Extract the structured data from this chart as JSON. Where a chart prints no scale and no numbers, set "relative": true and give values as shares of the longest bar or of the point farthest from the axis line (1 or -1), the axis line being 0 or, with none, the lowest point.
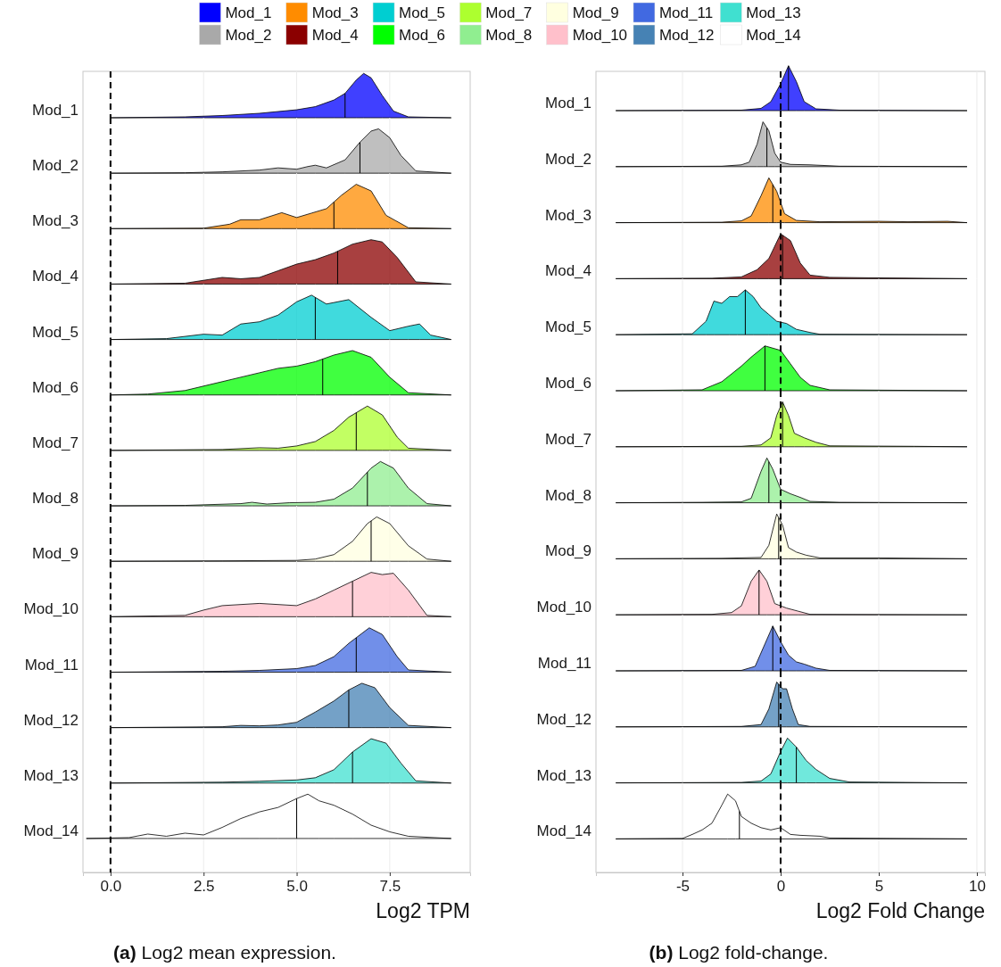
{
  "chart_data": [
    {
      "type": "area",
      "relative": true,
      "xlim": [
        -0.74,
        9.66
      ],
      "xticks": [
        0,
        2.5,
        5,
        7.5
      ],
      "tick_labels": false,
      "grid": "x",
      "legend": "top",
      "x": [
        0,
        2,
        3,
        4,
        5,
        5.5,
        6,
        6.3,
        6.6,
        6.8,
        7.0,
        7.3,
        7.6,
        8,
        9.15
      ],
      "series": [
        {
          "name": "Mod_1",
          "color": "#0000ff",
          "values": [
            0,
            0.02,
            0.05,
            0.1,
            0.18,
            0.25,
            0.4,
            0.55,
            0.85,
            1,
            0.9,
            0.5,
            0.15,
            0.02,
            0
          ]
        }
      ],
      "ref_lines": [
        {
          "axis": "x",
          "value": 0,
          "line_style": "dashed"
        },
        {
          "axis": "x",
          "value": 6.3
        }
      ]
    },
    {
      "type": "area",
      "relative": true,
      "xlim": [
        -0.74,
        9.66
      ],
      "xticks": [
        0,
        2.5,
        5,
        7.5
      ],
      "tick_labels": false,
      "grid": "x",
      "x": [
        0,
        2,
        3,
        4,
        4.5,
        5,
        5.3,
        5.5,
        5.8,
        6.3,
        6.7,
        7.0,
        7.2,
        7.5,
        7.8,
        8.2,
        9.15
      ],
      "series": [
        {
          "name": "Mod_2",
          "color": "#a9a9a9",
          "values": [
            0,
            0.01,
            0.03,
            0.07,
            0.12,
            0.09,
            0.15,
            0.18,
            0.12,
            0.3,
            0.7,
            0.95,
            1,
            0.8,
            0.4,
            0.05,
            0
          ]
        }
      ],
      "ref_lines": [
        {
          "axis": "x",
          "value": 0,
          "line_style": "dashed"
        },
        {
          "axis": "x",
          "value": 6.7
        }
      ]
    },
    {
      "type": "area",
      "relative": true,
      "xlim": [
        -0.74,
        9.66
      ],
      "xticks": [
        0,
        2.5,
        5,
        7.5
      ],
      "tick_labels": false,
      "grid": "x",
      "x": [
        0,
        2.5,
        3.2,
        3.5,
        4,
        4.6,
        5,
        5.4,
        5.8,
        6.2,
        6.6,
        7.0,
        7.4,
        8,
        9.15
      ],
      "series": [
        {
          "name": "Mod_3",
          "color": "#ff8c00",
          "values": [
            0,
            0.01,
            0.1,
            0.2,
            0.2,
            0.36,
            0.25,
            0.35,
            0.45,
            0.75,
            1,
            0.85,
            0.3,
            0.02,
            0
          ]
        }
      ],
      "ref_lines": [
        {
          "axis": "x",
          "value": 0,
          "line_style": "dashed"
        },
        {
          "axis": "x",
          "value": 6.0
        }
      ]
    },
    {
      "type": "area",
      "relative": true,
      "xlim": [
        -0.74,
        9.66
      ],
      "xticks": [
        0,
        2.5,
        5,
        7.5
      ],
      "tick_labels": false,
      "grid": "x",
      "x": [
        0,
        2,
        3,
        3.5,
        4,
        4.5,
        5,
        5.5,
        6,
        6.5,
        7,
        7.3,
        7.7,
        8.2,
        9.15
      ],
      "series": [
        {
          "name": "Mod_4",
          "color": "#8b0000",
          "values": [
            0,
            0.02,
            0.15,
            0.12,
            0.15,
            0.3,
            0.45,
            0.55,
            0.7,
            0.9,
            1,
            0.95,
            0.6,
            0.05,
            0
          ]
        }
      ],
      "ref_lines": [
        {
          "axis": "x",
          "value": 0,
          "line_style": "dashed"
        },
        {
          "axis": "x",
          "value": 6.1
        }
      ]
    },
    {
      "type": "area",
      "relative": true,
      "xlim": [
        -0.74,
        9.66
      ],
      "xticks": [
        0,
        2.5,
        5,
        7.5
      ],
      "tick_labels": false,
      "grid": "x",
      "x": [
        0,
        1.5,
        2.5,
        3,
        3.5,
        4,
        4.5,
        5,
        5.4,
        5.8,
        6.4,
        7,
        7.5,
        8,
        8.3,
        8.6,
        9.15
      ],
      "series": [
        {
          "name": "Mod_5",
          "color": "#00ced1",
          "values": [
            0,
            0.02,
            0.12,
            0.1,
            0.35,
            0.4,
            0.55,
            0.85,
            1,
            0.8,
            0.9,
            0.5,
            0.2,
            0.3,
            0.35,
            0.1,
            0
          ]
        }
      ],
      "ref_lines": [
        {
          "axis": "x",
          "value": 0,
          "line_style": "dashed"
        },
        {
          "axis": "x",
          "value": 5.5
        }
      ]
    },
    {
      "type": "area",
      "relative": true,
      "xlim": [
        -0.74,
        9.66
      ],
      "xticks": [
        0,
        2.5,
        5,
        7.5
      ],
      "tick_labels": false,
      "grid": "x",
      "x": [
        0,
        1,
        2,
        3,
        4,
        4.5,
        5,
        5.5,
        6,
        6.5,
        7,
        7.5,
        8,
        9.15
      ],
      "series": [
        {
          "name": "Mod_6",
          "color": "#00ff00",
          "values": [
            0,
            0.02,
            0.1,
            0.3,
            0.5,
            0.6,
            0.65,
            0.75,
            0.9,
            1,
            0.85,
            0.4,
            0.05,
            0
          ]
        }
      ],
      "ref_lines": [
        {
          "axis": "x",
          "value": 0,
          "line_style": "dashed"
        },
        {
          "axis": "x",
          "value": 5.7
        }
      ]
    },
    {
      "type": "area",
      "relative": true,
      "xlim": [
        -0.74,
        9.66
      ],
      "xticks": [
        0,
        2.5,
        5,
        7.5
      ],
      "tick_labels": false,
      "grid": "x",
      "x": [
        0,
        3,
        4,
        4.5,
        5,
        5.5,
        6,
        6.4,
        6.9,
        7.3,
        7.7,
        8,
        9.15
      ],
      "series": [
        {
          "name": "Mod_7",
          "color": "#adff2f",
          "values": [
            0,
            0.02,
            0.06,
            0.05,
            0.1,
            0.2,
            0.45,
            0.75,
            1,
            0.8,
            0.3,
            0.05,
            0
          ]
        }
      ],
      "ref_lines": [
        {
          "axis": "x",
          "value": 0,
          "line_style": "dashed"
        },
        {
          "axis": "x",
          "value": 6.6
        }
      ]
    },
    {
      "type": "area",
      "relative": true,
      "xlim": [
        -0.74,
        9.66
      ],
      "xticks": [
        0,
        2.5,
        5,
        7.5
      ],
      "tick_labels": false,
      "grid": "x",
      "x": [
        0,
        2,
        3.5,
        3.8,
        4.2,
        4.8,
        5.5,
        6,
        6.5,
        7.0,
        7.25,
        7.6,
        8,
        8.5,
        9.15
      ],
      "series": [
        {
          "name": "Mod_8",
          "color": "#90ee90",
          "values": [
            0,
            0.01,
            0.05,
            0.08,
            0.04,
            0.07,
            0.08,
            0.15,
            0.4,
            0.85,
            1,
            0.85,
            0.4,
            0.05,
            0
          ]
        }
      ],
      "ref_lines": [
        {
          "axis": "x",
          "value": 0,
          "line_style": "dashed"
        },
        {
          "axis": "x",
          "value": 6.9
        }
      ]
    },
    {
      "type": "area",
      "relative": true,
      "xlim": [
        -0.74,
        9.66
      ],
      "xticks": [
        0,
        2.5,
        5,
        7.5
      ],
      "tick_labels": false,
      "grid": "x",
      "x": [
        0,
        3,
        5,
        5.5,
        6,
        6.5,
        6.9,
        7.15,
        7.5,
        8,
        8.5,
        9.15
      ],
      "series": [
        {
          "name": "Mod_9",
          "color": "#ffffe0",
          "values": [
            0,
            0.01,
            0.02,
            0.05,
            0.15,
            0.45,
            0.85,
            1,
            0.85,
            0.35,
            0.05,
            0
          ]
        }
      ],
      "ref_lines": [
        {
          "axis": "x",
          "value": 0,
          "line_style": "dashed"
        },
        {
          "axis": "x",
          "value": 7.0
        }
      ]
    },
    {
      "type": "area",
      "relative": true,
      "xlim": [
        -0.74,
        9.66
      ],
      "xticks": [
        0,
        2.5,
        5,
        7.5
      ],
      "tick_labels": false,
      "grid": "x",
      "x": [
        0,
        2,
        2.5,
        3,
        4,
        5,
        5.5,
        6,
        6.5,
        7,
        7.3,
        7.6,
        8,
        8.5,
        9.15
      ],
      "series": [
        {
          "name": "Mod_10",
          "color": "#ffc0cb",
          "values": [
            0,
            0.03,
            0.15,
            0.25,
            0.3,
            0.25,
            0.4,
            0.6,
            0.8,
            1,
            0.95,
            0.98,
            0.6,
            0.03,
            0
          ]
        }
      ],
      "ref_lines": [
        {
          "axis": "x",
          "value": 0,
          "line_style": "dashed"
        },
        {
          "axis": "x",
          "value": 6.5
        }
      ]
    },
    {
      "type": "area",
      "relative": true,
      "xlim": [
        -0.74,
        9.66
      ],
      "xticks": [
        0,
        2.5,
        5,
        7.5
      ],
      "tick_labels": false,
      "grid": "x",
      "x": [
        0,
        3,
        4,
        5,
        5.5,
        6,
        6.4,
        6.95,
        7.3,
        7.7,
        8,
        9.15
      ],
      "series": [
        {
          "name": "Mod_11",
          "color": "#4169e1",
          "values": [
            0,
            0.02,
            0.04,
            0.08,
            0.15,
            0.35,
            0.65,
            1,
            0.85,
            0.35,
            0.05,
            0
          ]
        }
      ],
      "ref_lines": [
        {
          "axis": "x",
          "value": 0,
          "line_style": "dashed"
        },
        {
          "axis": "x",
          "value": 6.6
        }
      ]
    },
    {
      "type": "area",
      "relative": true,
      "xlim": [
        -0.74,
        9.66
      ],
      "xticks": [
        0,
        2.5,
        5,
        7.5
      ],
      "tick_labels": false,
      "grid": "x",
      "x": [
        0,
        3,
        3.5,
        4,
        4.5,
        5,
        5.5,
        6,
        6.4,
        6.75,
        7.1,
        7.5,
        8,
        9.15
      ],
      "series": [
        {
          "name": "Mod_12",
          "color": "#4682b4",
          "values": [
            0,
            0.02,
            0.05,
            0.04,
            0.06,
            0.12,
            0.35,
            0.6,
            0.85,
            1,
            0.9,
            0.45,
            0.05,
            0
          ]
        }
      ],
      "ref_lines": [
        {
          "axis": "x",
          "value": 0,
          "line_style": "dashed"
        },
        {
          "axis": "x",
          "value": 6.4
        }
      ]
    },
    {
      "type": "area",
      "relative": true,
      "xlim": [
        -0.74,
        9.66
      ],
      "xticks": [
        0,
        2.5,
        5,
        7.5
      ],
      "tick_labels": false,
      "grid": "x",
      "x": [
        0,
        3,
        4,
        5,
        5.5,
        6,
        6.5,
        7,
        7.4,
        7.8,
        8.2,
        9.15
      ],
      "series": [
        {
          "name": "Mod_13",
          "color": "#40e0d0",
          "values": [
            0,
            0.02,
            0.04,
            0.07,
            0.12,
            0.3,
            0.7,
            1,
            0.9,
            0.45,
            0.05,
            0
          ]
        }
      ],
      "ref_lines": [
        {
          "axis": "x",
          "value": 0,
          "line_style": "dashed"
        },
        {
          "axis": "x",
          "value": 6.5
        }
      ]
    },
    {
      "type": "area",
      "relative": true,
      "xlim": [
        -0.74,
        9.66
      ],
      "xticks": [
        {
          "value": 0,
          "label": "0.0"
        },
        {
          "value": 2.5,
          "label": "2.5"
        },
        {
          "value": 5,
          "label": "5.0"
        },
        {
          "value": 7.5,
          "label": "7.5"
        }
      ],
      "tick_labels": "x",
      "grid": "x",
      "xlabel": "Log2 TPM",
      "annotations": [
        "(a) Log2 mean expression."
      ],
      "x": [
        -0.65,
        0.5,
        1,
        1.5,
        2,
        2.5,
        3,
        3.5,
        4,
        4.5,
        5,
        5.3,
        5.6,
        6,
        6.5,
        7,
        7.5,
        8,
        9.15
      ],
      "series": [
        {
          "name": "Mod_14",
          "color": "#ffffff",
          "values": [
            0,
            0.02,
            0.1,
            0.05,
            0.12,
            0.08,
            0.25,
            0.45,
            0.6,
            0.7,
            0.9,
            1,
            0.85,
            0.75,
            0.55,
            0.3,
            0.15,
            0.05,
            0
          ]
        }
      ],
      "ref_lines": [
        {
          "axis": "x",
          "value": 0,
          "line_style": "dashed"
        },
        {
          "axis": "x",
          "value": 5.0
        }
      ]
    },
    {
      "type": "area",
      "relative": true,
      "xlim": [
        -9.41,
        10.41
      ],
      "xticks": [
        -5,
        0,
        5,
        10
      ],
      "tick_labels": false,
      "grid": "x",
      "x": [
        -8.4,
        -2,
        -1,
        -0.5,
        0,
        0.4,
        0.8,
        1.2,
        1.8,
        3,
        9.5
      ],
      "series": [
        {
          "name": "Mod_1",
          "color": "#0000ff",
          "values": [
            0,
            0.01,
            0.05,
            0.2,
            0.6,
            1,
            0.65,
            0.2,
            0.04,
            0.01,
            0
          ]
        }
      ],
      "ref_lines": [
        {
          "axis": "x",
          "value": 0,
          "line_style": "dashed"
        },
        {
          "axis": "x",
          "value": 0.4
        }
      ]
    },
    {
      "type": "area",
      "relative": true,
      "xlim": [
        -9.41,
        10.41
      ],
      "xticks": [
        -5,
        0,
        5,
        10
      ],
      "tick_labels": false,
      "grid": "x",
      "x": [
        -8.4,
        -3,
        -2,
        -1.6,
        -1.2,
        -0.9,
        -0.6,
        -0.3,
        0,
        0.5,
        1.5,
        3,
        9.5
      ],
      "series": [
        {
          "name": "Mod_2",
          "color": "#a9a9a9",
          "values": [
            0,
            0.01,
            0.04,
            0.1,
            0.5,
            1,
            0.8,
            0.3,
            0.1,
            0.05,
            0.04,
            0.01,
            0
          ]
        }
      ],
      "ref_lines": [
        {
          "axis": "x",
          "value": 0,
          "line_style": "dashed"
        },
        {
          "axis": "x",
          "value": -0.7
        }
      ]
    },
    {
      "type": "area",
      "relative": true,
      "xlim": [
        -9.41,
        10.41
      ],
      "xticks": [
        -5,
        0,
        5,
        10
      ],
      "tick_labels": false,
      "grid": "x",
      "x": [
        -8.4,
        -3,
        -2,
        -1.5,
        -1,
        -0.6,
        -0.2,
        0.2,
        0.8,
        2,
        5,
        6.5,
        8.5,
        9.5
      ],
      "series": [
        {
          "name": "Mod_3",
          "color": "#ff8c00",
          "values": [
            0,
            0.01,
            0.04,
            0.15,
            0.6,
            1,
            0.7,
            0.2,
            0.05,
            0.02,
            0.03,
            0.02,
            0.03,
            0
          ]
        }
      ],
      "ref_lines": [
        {
          "axis": "x",
          "value": 0,
          "line_style": "dashed"
        },
        {
          "axis": "x",
          "value": -0.4
        }
      ]
    },
    {
      "type": "area",
      "relative": true,
      "xlim": [
        -9.41,
        10.41
      ],
      "xticks": [
        -5,
        0,
        5,
        10
      ],
      "tick_labels": false,
      "grid": "x",
      "x": [
        -8.4,
        -3.5,
        -2,
        -1.2,
        -0.6,
        0,
        0.5,
        1,
        1.5,
        2.5,
        4.5,
        9.5
      ],
      "series": [
        {
          "name": "Mod_4",
          "color": "#8b0000",
          "values": [
            0,
            0.01,
            0.04,
            0.2,
            0.45,
            1,
            0.85,
            0.35,
            0.08,
            0.03,
            0.02,
            0
          ]
        }
      ],
      "ref_lines": [
        {
          "axis": "x",
          "value": 0,
          "line_style": "dashed"
        },
        {
          "axis": "x",
          "value": 0.1
        }
      ]
    },
    {
      "type": "area",
      "relative": true,
      "xlim": [
        -9.41,
        10.41
      ],
      "xticks": [
        -5,
        0,
        5,
        10
      ],
      "tick_labels": false,
      "grid": "x",
      "x": [
        -8.4,
        -4.5,
        -3.8,
        -3.4,
        -3,
        -2.6,
        -2.2,
        -1.8,
        -1.4,
        -1,
        -0.6,
        -0.2,
        0.3,
        0.8,
        1.5,
        2,
        9.5
      ],
      "series": [
        {
          "name": "Mod_5",
          "color": "#00ced1",
          "values": [
            0,
            0.02,
            0.3,
            0.75,
            0.7,
            0.85,
            0.85,
            1,
            0.85,
            0.6,
            0.45,
            0.3,
            0.25,
            0.12,
            0.05,
            0.01,
            0
          ]
        }
      ],
      "ref_lines": [
        {
          "axis": "x",
          "value": 0,
          "line_style": "dashed"
        },
        {
          "axis": "x",
          "value": -1.8
        }
      ]
    },
    {
      "type": "area",
      "relative": true,
      "xlim": [
        -9.41,
        10.41
      ],
      "xticks": [
        -5,
        0,
        5,
        10
      ],
      "tick_labels": false,
      "grid": "x",
      "x": [
        -8.4,
        -4,
        -3,
        -2,
        -1.5,
        -0.8,
        0,
        0.5,
        1,
        1.5,
        2.5,
        9.5
      ],
      "series": [
        {
          "name": "Mod_6",
          "color": "#00ff00",
          "values": [
            0,
            0.02,
            0.2,
            0.55,
            0.75,
            1,
            0.9,
            0.6,
            0.3,
            0.12,
            0.02,
            0
          ]
        }
      ],
      "ref_lines": [
        {
          "axis": "x",
          "value": 0,
          "line_style": "dashed"
        },
        {
          "axis": "x",
          "value": -0.8
        }
      ]
    },
    {
      "type": "area",
      "relative": true,
      "xlim": [
        -9.41,
        10.41
      ],
      "xticks": [
        -5,
        0,
        5,
        10
      ],
      "tick_labels": false,
      "grid": "x",
      "x": [
        -8.4,
        -2,
        -1,
        -0.5,
        -0.2,
        0.1,
        0.4,
        0.7,
        1.2,
        1.8,
        2.5,
        6.8,
        9.5
      ],
      "series": [
        {
          "name": "Mod_7",
          "color": "#adff2f",
          "values": [
            0,
            0.01,
            0.04,
            0.2,
            0.7,
            1,
            0.7,
            0.3,
            0.2,
            0.1,
            0.02,
            0.01,
            0
          ]
        }
      ],
      "ref_lines": [
        {
          "axis": "x",
          "value": 0,
          "line_style": "dashed"
        },
        {
          "axis": "x",
          "value": 0.1
        }
      ]
    },
    {
      "type": "area",
      "relative": true,
      "xlim": [
        -9.41,
        10.41
      ],
      "xticks": [
        -5,
        0,
        5,
        10
      ],
      "tick_labels": false,
      "grid": "x",
      "x": [
        -8.4,
        -4,
        -2,
        -1.5,
        -1,
        -0.7,
        -0.4,
        0,
        0.5,
        1,
        1.5,
        3,
        9.5
      ],
      "series": [
        {
          "name": "Mod_8",
          "color": "#90ee90",
          "values": [
            0,
            0.01,
            0.02,
            0.1,
            0.7,
            1,
            0.75,
            0.3,
            0.2,
            0.12,
            0.03,
            0.01,
            0
          ]
        }
      ],
      "ref_lines": [
        {
          "axis": "x",
          "value": 0,
          "line_style": "dashed"
        },
        {
          "axis": "x",
          "value": -0.6
        }
      ]
    },
    {
      "type": "area",
      "relative": true,
      "xlim": [
        -9.41,
        10.41
      ],
      "xticks": [
        -5,
        0,
        5,
        10
      ],
      "tick_labels": false,
      "grid": "x",
      "x": [
        -8.4,
        -3,
        -1,
        -0.6,
        -0.2,
        0.1,
        0.4,
        0.8,
        1.3,
        2,
        5,
        9.5
      ],
      "series": [
        {
          "name": "Mod_9",
          "color": "#ffffe0",
          "values": [
            0,
            0.01,
            0.03,
            0.3,
            1,
            0.75,
            0.25,
            0.15,
            0.08,
            0.02,
            0.02,
            0
          ]
        }
      ],
      "ref_lines": [
        {
          "axis": "x",
          "value": 0,
          "line_style": "dashed"
        },
        {
          "axis": "x",
          "value": -0.1
        }
      ]
    },
    {
      "type": "area",
      "relative": true,
      "xlim": [
        -9.41,
        10.41
      ],
      "xticks": [
        -5,
        0,
        5,
        10
      ],
      "tick_labels": false,
      "grid": "x",
      "x": [
        -8.4,
        -3.5,
        -2.5,
        -2,
        -1.5,
        -1.1,
        -0.7,
        -0.3,
        0.3,
        0.9,
        1.5,
        9.5
      ],
      "series": [
        {
          "name": "Mod_10",
          "color": "#ffc0cb",
          "values": [
            0,
            0.01,
            0.05,
            0.2,
            0.75,
            1,
            0.75,
            0.25,
            0.15,
            0.08,
            0.01,
            0
          ]
        }
      ],
      "ref_lines": [
        {
          "axis": "x",
          "value": 0,
          "line_style": "dashed"
        },
        {
          "axis": "x",
          "value": -1.1
        }
      ]
    },
    {
      "type": "area",
      "relative": true,
      "xlim": [
        -9.41,
        10.41
      ],
      "xticks": [
        -5,
        0,
        5,
        10
      ],
      "tick_labels": false,
      "grid": "x",
      "x": [
        -8.4,
        -2,
        -1.3,
        -0.8,
        -0.4,
        0,
        0.4,
        0.8,
        1.2,
        1.8,
        2.5,
        9.5
      ],
      "series": [
        {
          "name": "Mod_11",
          "color": "#4169e1",
          "values": [
            0,
            0.01,
            0.1,
            0.6,
            1,
            0.65,
            0.35,
            0.2,
            0.15,
            0.06,
            0.01,
            0
          ]
        }
      ],
      "ref_lines": [
        {
          "axis": "x",
          "value": 0,
          "line_style": "dashed"
        },
        {
          "axis": "x",
          "value": -0.4
        }
      ]
    },
    {
      "type": "area",
      "relative": true,
      "xlim": [
        -9.41,
        10.41
      ],
      "xticks": [
        -5,
        0,
        5,
        10
      ],
      "tick_labels": false,
      "grid": "x",
      "x": [
        -8.4,
        -2,
        -1,
        -0.6,
        -0.2,
        0.1,
        0.3,
        0.6,
        0.9,
        1.5,
        9.5
      ],
      "series": [
        {
          "name": "Mod_12",
          "color": "#4682b4",
          "values": [
            0,
            0.01,
            0.05,
            0.4,
            1,
            0.85,
            0.85,
            0.4,
            0.05,
            0.01,
            0
          ]
        }
      ],
      "ref_lines": [
        {
          "axis": "x",
          "value": 0,
          "line_style": "dashed"
        },
        {
          "axis": "x",
          "value": -0.1
        }
      ]
    },
    {
      "type": "area",
      "relative": true,
      "xlim": [
        -9.41,
        10.41
      ],
      "xticks": [
        -5,
        0,
        5,
        10
      ],
      "tick_labels": false,
      "grid": "x",
      "x": [
        -8.4,
        -2,
        -1,
        -0.5,
        0,
        0.35,
        0.8,
        1.3,
        1.8,
        2.5,
        3.5,
        9.5
      ],
      "series": [
        {
          "name": "Mod_13",
          "color": "#40e0d0",
          "values": [
            0,
            0.01,
            0.04,
            0.2,
            0.7,
            1,
            0.8,
            0.5,
            0.3,
            0.1,
            0.02,
            0
          ]
        }
      ],
      "ref_lines": [
        {
          "axis": "x",
          "value": 0,
          "line_style": "dashed"
        },
        {
          "axis": "x",
          "value": 0.8
        }
      ]
    },
    {
      "type": "area",
      "relative": true,
      "xlim": [
        -9.41,
        10.41
      ],
      "xticks": [
        -5,
        0,
        5,
        10
      ],
      "tick_labels": "x",
      "grid": "x",
      "xlabel": "Log2 Fold Change",
      "annotations": [
        "(b) Log2 fold-change."
      ],
      "x": [
        -8.4,
        -5,
        -4.5,
        -4,
        -3.5,
        -3,
        -2.7,
        -2.3,
        -2,
        -1.5,
        -1,
        -0.5,
        0,
        0.5,
        1,
        2,
        2.5,
        9.5
      ],
      "series": [
        {
          "name": "Mod_14",
          "color": "#ffffff",
          "values": [
            0,
            0.01,
            0.1,
            0.2,
            0.35,
            0.75,
            1,
            0.85,
            0.5,
            0.35,
            0.25,
            0.2,
            0.25,
            0.1,
            0.08,
            0.06,
            0.02,
            0
          ]
        }
      ],
      "ref_lines": [
        {
          "axis": "x",
          "value": 0,
          "line_style": "dashed"
        },
        {
          "axis": "x",
          "value": -2.1
        }
      ]
    }
  ]
}
